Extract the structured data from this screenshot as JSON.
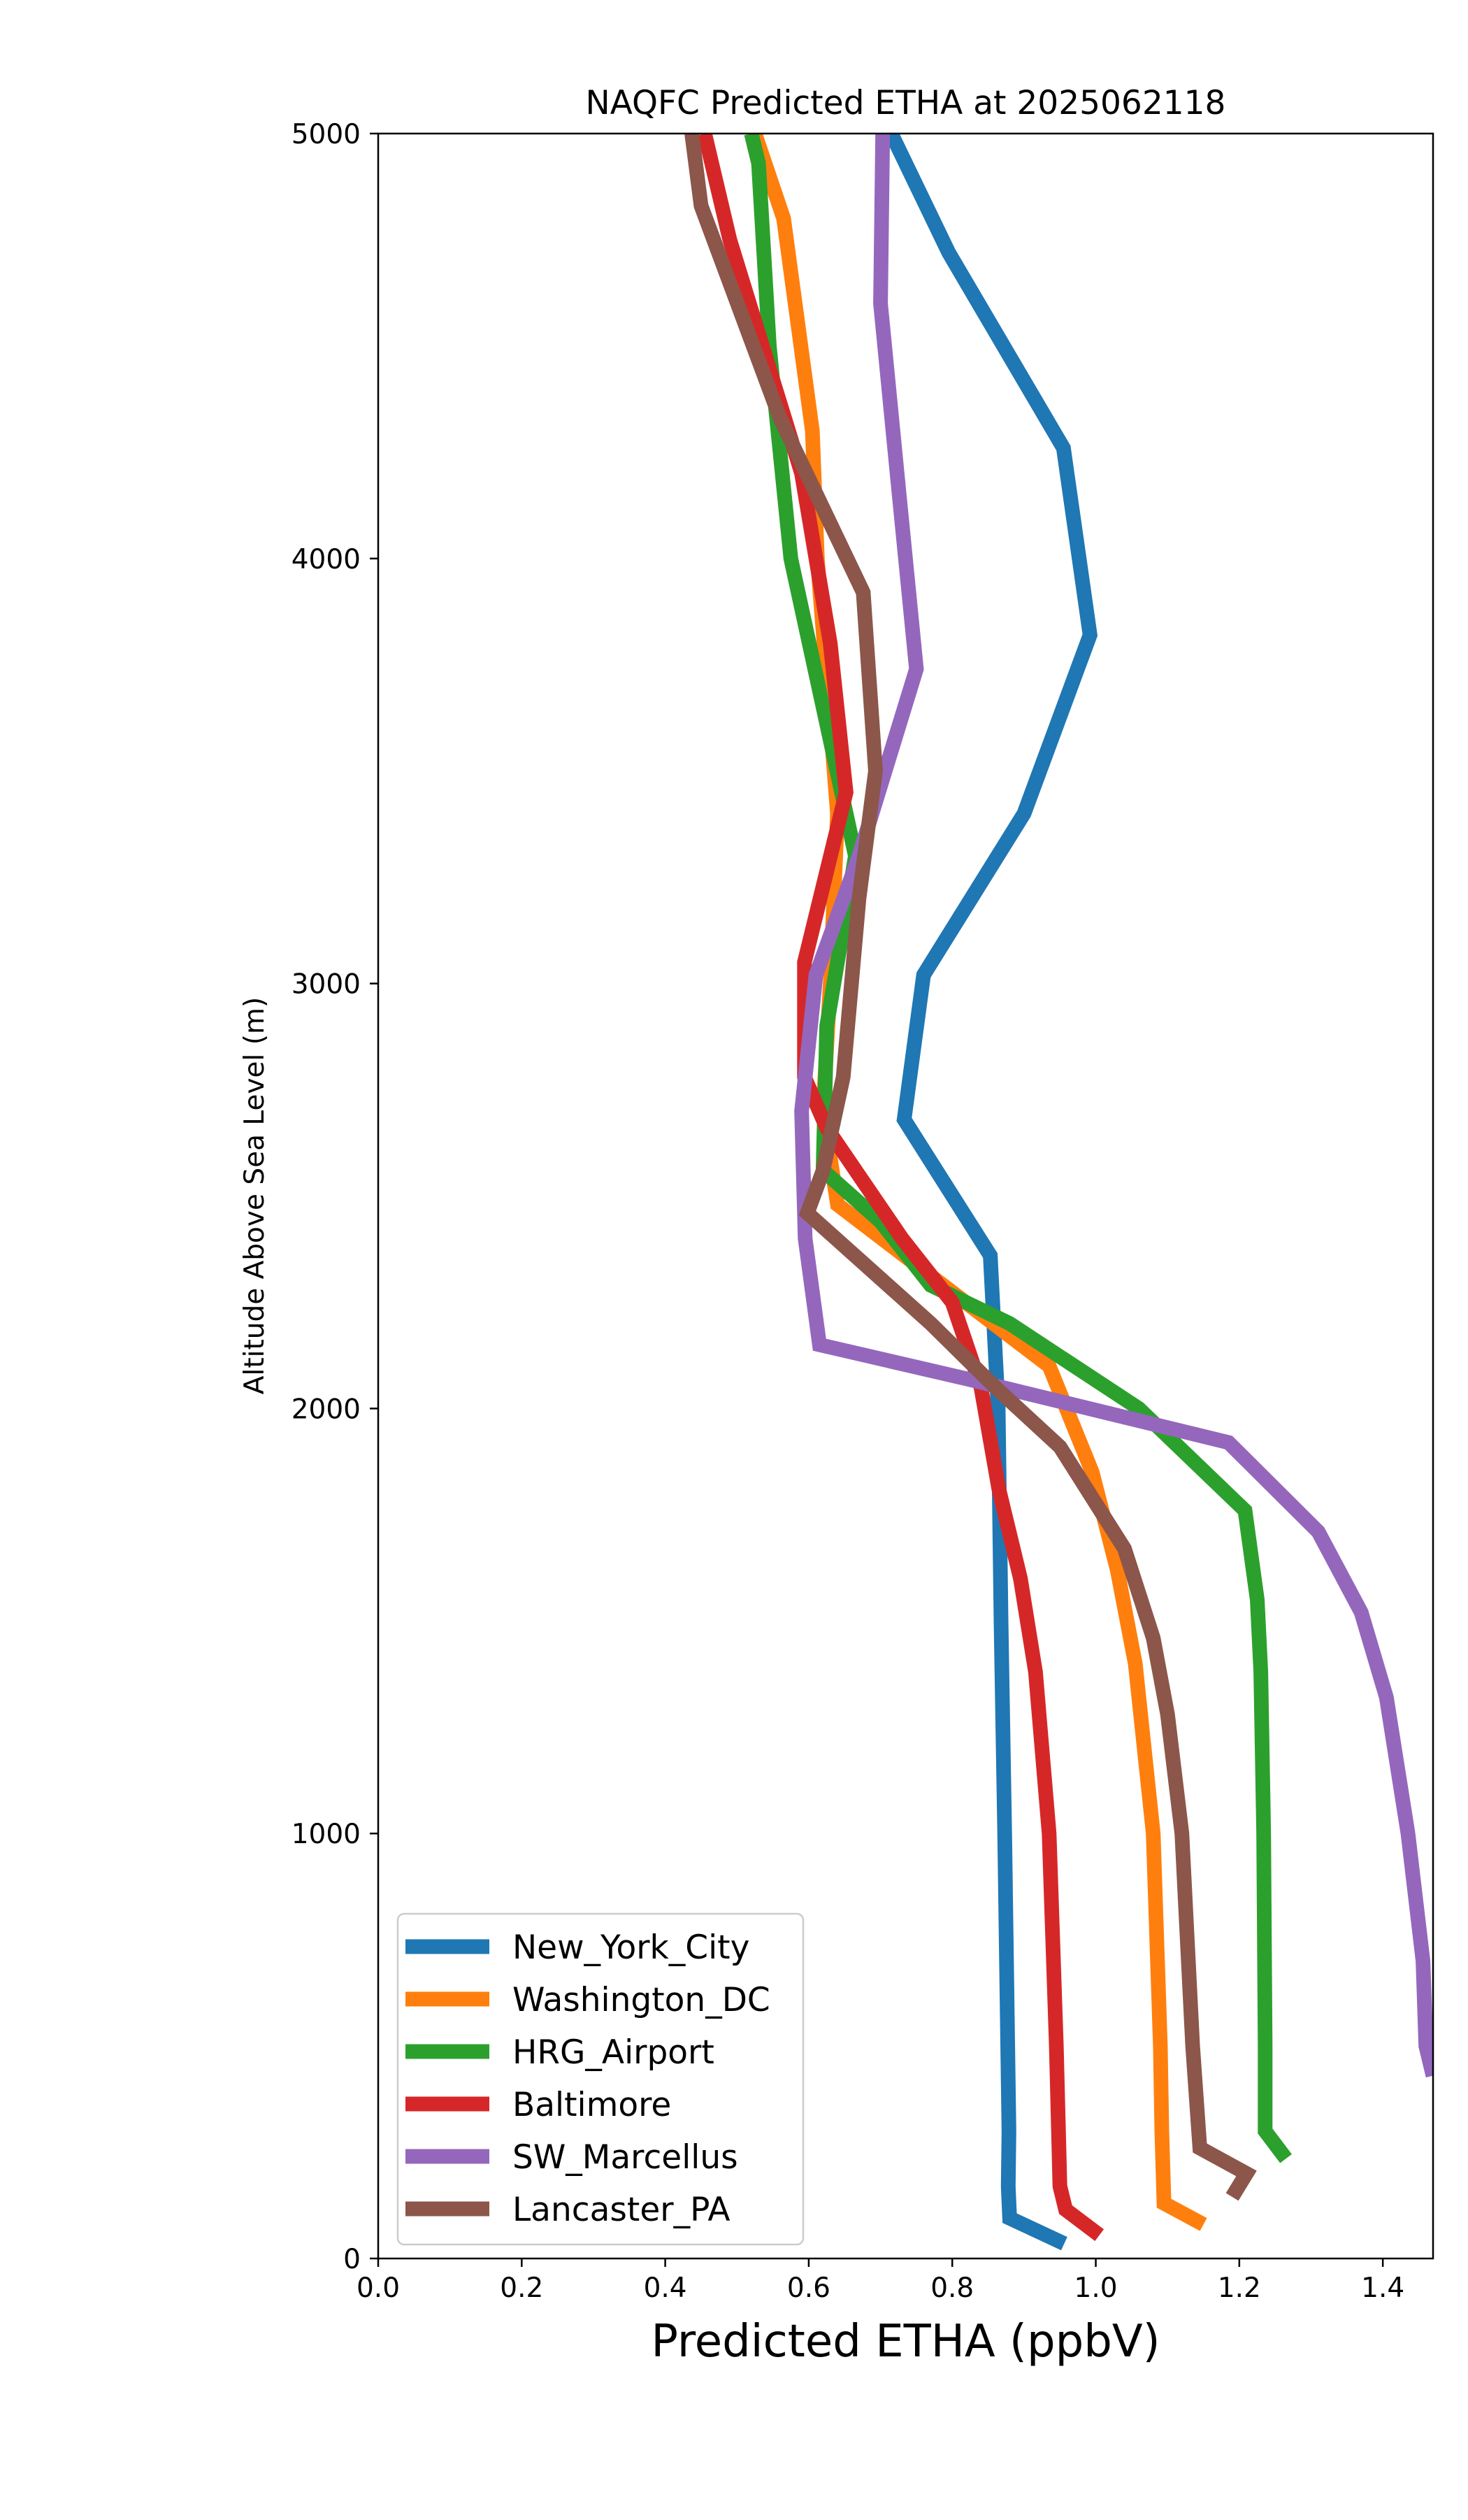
{
  "chart_data": {
    "type": "line",
    "title": "NAQFC Predicted ETHA at 2025062118",
    "xlabel": "Predicted ETHA (ppbV)",
    "ylabel": "Altitude Above Sea Level (m)",
    "xlim": [
      0.0,
      1.47
    ],
    "ylim": [
      0,
      5000
    ],
    "xticks": [
      0.0,
      0.2,
      0.4,
      0.6,
      0.8,
      1.0,
      1.2,
      1.4
    ],
    "xtick_labels": [
      "0.0",
      "0.2",
      "0.4",
      "0.6",
      "0.8",
      "1.0",
      "1.2",
      "1.4"
    ],
    "yticks": [
      0,
      1000,
      2000,
      3000,
      4000,
      5000
    ],
    "ytick_labels": [
      "0",
      "1000",
      "2000",
      "3000",
      "4000",
      "5000"
    ],
    "grid": false,
    "legend_position": "lower-left",
    "series": [
      {
        "name": "New_York_City",
        "color": "#1f77b4",
        "points": [
          [
            0.956,
            35
          ],
          [
            0.88,
            95
          ],
          [
            0.878,
            170
          ],
          [
            0.879,
            300
          ],
          [
            0.873,
            1000
          ],
          [
            0.868,
            1500
          ],
          [
            0.864,
            2000
          ],
          [
            0.853,
            2360
          ],
          [
            0.733,
            2680
          ],
          [
            0.76,
            3020
          ],
          [
            0.9,
            3400
          ],
          [
            0.992,
            3820
          ],
          [
            0.955,
            4260
          ],
          [
            0.795,
            4720
          ],
          [
            0.715,
            5000
          ]
        ]
      },
      {
        "name": "Washington_DC",
        "color": "#ff7f0e",
        "points": [
          [
            1.15,
            80
          ],
          [
            1.095,
            130
          ],
          [
            1.092,
            300
          ],
          [
            1.09,
            500
          ],
          [
            1.08,
            1000
          ],
          [
            1.055,
            1400
          ],
          [
            1.03,
            1620
          ],
          [
            0.995,
            1850
          ],
          [
            0.935,
            2100
          ],
          [
            0.733,
            2360
          ],
          [
            0.64,
            2480
          ],
          [
            0.62,
            2700
          ],
          [
            0.63,
            3000
          ],
          [
            0.64,
            3400
          ],
          [
            0.612,
            4000
          ],
          [
            0.605,
            4300
          ],
          [
            0.565,
            4800
          ],
          [
            0.525,
            5000
          ]
        ]
      },
      {
        "name": "HRG_Airport",
        "color": "#2ca02c",
        "points": [
          [
            1.265,
            235
          ],
          [
            1.236,
            300
          ],
          [
            1.236,
            500
          ],
          [
            1.234,
            1000
          ],
          [
            1.23,
            1380
          ],
          [
            1.225,
            1550
          ],
          [
            1.208,
            1760
          ],
          [
            1.06,
            2000
          ],
          [
            0.88,
            2200
          ],
          [
            0.77,
            2290
          ],
          [
            0.7,
            2440
          ],
          [
            0.62,
            2560
          ],
          [
            0.625,
            2900
          ],
          [
            0.665,
            3300
          ],
          [
            0.575,
            4000
          ],
          [
            0.545,
            4500
          ],
          [
            0.53,
            4930
          ],
          [
            0.52,
            5000
          ]
        ]
      },
      {
        "name": "Baltimore",
        "color": "#d62728",
        "points": [
          [
            1.005,
            55
          ],
          [
            0.958,
            115
          ],
          [
            0.95,
            170
          ],
          [
            0.945,
            500
          ],
          [
            0.935,
            1000
          ],
          [
            0.916,
            1380
          ],
          [
            0.895,
            1600
          ],
          [
            0.865,
            1810
          ],
          [
            0.84,
            2050
          ],
          [
            0.8,
            2250
          ],
          [
            0.73,
            2400
          ],
          [
            0.625,
            2660
          ],
          [
            0.594,
            2780
          ],
          [
            0.594,
            3050
          ],
          [
            0.652,
            3450
          ],
          [
            0.63,
            3800
          ],
          [
            0.59,
            4200
          ],
          [
            0.49,
            4750
          ],
          [
            0.455,
            5000
          ]
        ]
      },
      {
        "name": "SW_Marcellus",
        "color": "#9467bd",
        "points": [
          [
            1.47,
            430
          ],
          [
            1.46,
            500
          ],
          [
            1.456,
            700
          ],
          [
            1.435,
            1000
          ],
          [
            1.405,
            1320
          ],
          [
            1.37,
            1520
          ],
          [
            1.31,
            1710
          ],
          [
            1.185,
            1920
          ],
          [
            0.82,
            2070
          ],
          [
            0.615,
            2150
          ],
          [
            0.595,
            2400
          ],
          [
            0.59,
            2700
          ],
          [
            0.61,
            3020
          ],
          [
            0.67,
            3300
          ],
          [
            0.75,
            3740
          ],
          [
            0.726,
            4150
          ],
          [
            0.7,
            4600
          ],
          [
            0.703,
            5000
          ]
        ]
      },
      {
        "name": "Lancaster_PA",
        "color": "#8c564b",
        "points": [
          [
            1.19,
            145
          ],
          [
            1.21,
            200
          ],
          [
            1.145,
            260
          ],
          [
            1.135,
            500
          ],
          [
            1.12,
            1000
          ],
          [
            1.1,
            1280
          ],
          [
            1.08,
            1460
          ],
          [
            1.04,
            1670
          ],
          [
            0.95,
            1910
          ],
          [
            0.86,
            2050
          ],
          [
            0.77,
            2200
          ],
          [
            0.598,
            2460
          ],
          [
            0.62,
            2560
          ],
          [
            0.648,
            2780
          ],
          [
            0.67,
            3200
          ],
          [
            0.693,
            3500
          ],
          [
            0.676,
            3920
          ],
          [
            0.56,
            4330
          ],
          [
            0.45,
            4830
          ],
          [
            0.437,
            5000
          ]
        ]
      }
    ]
  }
}
